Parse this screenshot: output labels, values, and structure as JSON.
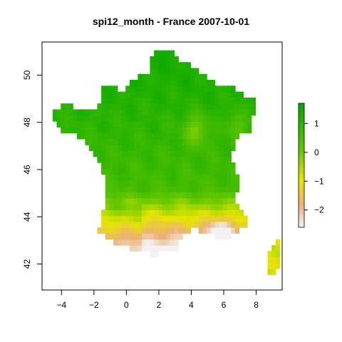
{
  "title": "spi12_month - France 2007-10-01",
  "map": {
    "x_ticks": [
      -4,
      -2,
      0,
      2,
      4,
      6,
      8
    ],
    "y_ticks": [
      42,
      44,
      46,
      48,
      50
    ],
    "xlim": [
      -5.2,
      9.6
    ],
    "ylim": [
      40.9,
      51.4
    ],
    "variable": "spi12_month",
    "region": "France",
    "date": "2007-10-01"
  },
  "legend": {
    "ticks": [
      1,
      0,
      -1,
      -2
    ],
    "range": [
      -2.6,
      1.7
    ],
    "colors": [
      "#f2f2f2",
      "#ecb176",
      "#e6e600",
      "#63c600",
      "#00a600"
    ]
  }
}
